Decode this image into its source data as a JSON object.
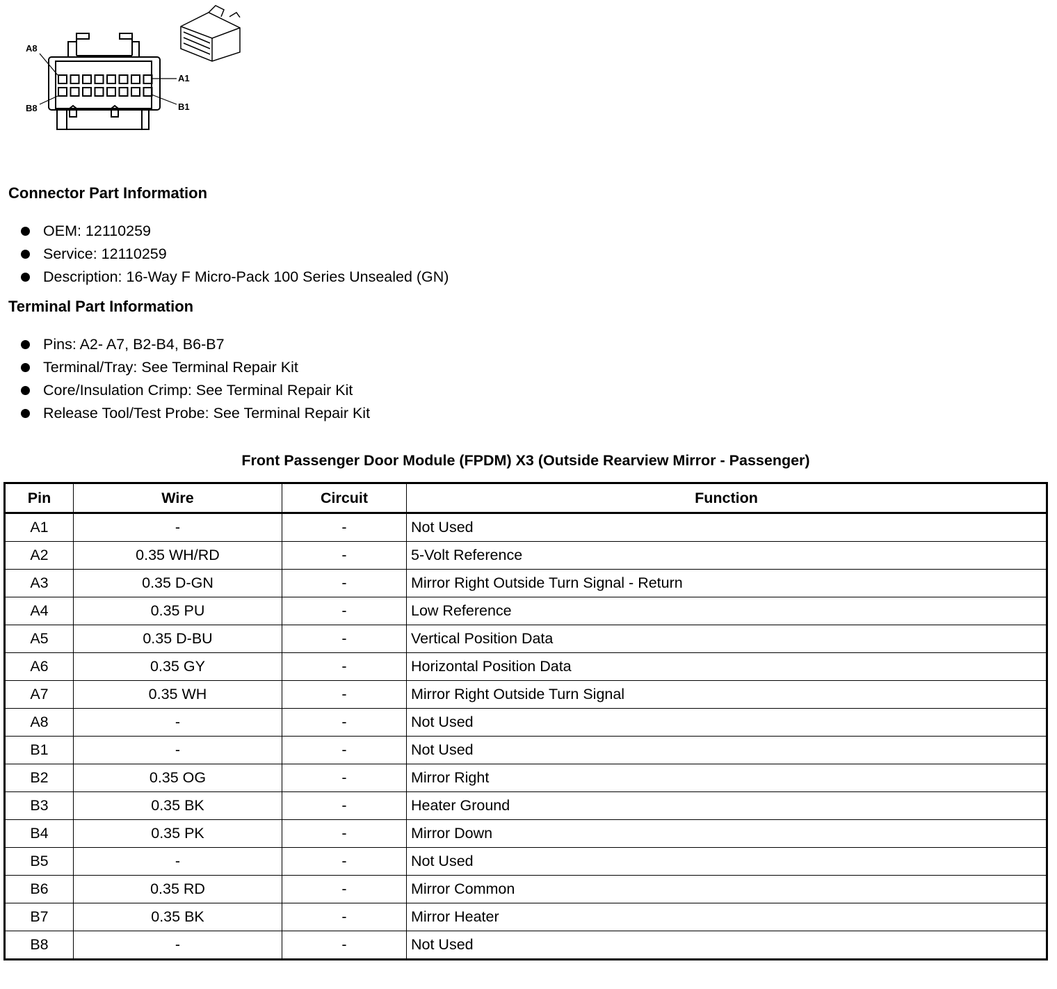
{
  "diagram": {
    "labels": {
      "a8": "A8",
      "a1": "A1",
      "b8": "B8",
      "b1": "B1"
    }
  },
  "connector_info": {
    "heading": "Connector Part Information",
    "items": [
      "OEM: 12110259",
      "Service: 12110259",
      "Description: 16-Way F Micro-Pack 100 Series Unsealed (GN)"
    ]
  },
  "terminal_info": {
    "heading": "Terminal Part Information",
    "items": [
      "Pins: A2- A7, B2-B4, B6-B7",
      "Terminal/Tray: See Terminal Repair Kit",
      "Core/Insulation Crimp: See Terminal Repair Kit",
      "Release Tool/Test Probe: See Terminal Repair Kit"
    ]
  },
  "table": {
    "title": "Front Passenger Door Module (FPDM) X3 (Outside Rearview Mirror - Passenger)",
    "headers": [
      "Pin",
      "Wire",
      "Circuit",
      "Function"
    ],
    "rows": [
      [
        "A1",
        "-",
        "-",
        "Not Used"
      ],
      [
        "A2",
        "0.35 WH/RD",
        "-",
        "5-Volt Reference"
      ],
      [
        "A3",
        "0.35 D-GN",
        "-",
        "Mirror Right Outside Turn Signal - Return"
      ],
      [
        "A4",
        "0.35 PU",
        "-",
        "Low Reference"
      ],
      [
        "A5",
        "0.35 D-BU",
        "-",
        "Vertical Position Data"
      ],
      [
        "A6",
        "0.35 GY",
        "-",
        "Horizontal Position Data"
      ],
      [
        "A7",
        "0.35 WH",
        "-",
        "Mirror Right Outside Turn Signal"
      ],
      [
        "A8",
        "-",
        "-",
        "Not Used"
      ],
      [
        "B1",
        "-",
        "-",
        "Not Used"
      ],
      [
        "B2",
        "0.35 OG",
        "-",
        "Mirror Right"
      ],
      [
        "B3",
        "0.35 BK",
        "-",
        "Heater Ground"
      ],
      [
        "B4",
        "0.35 PK",
        "-",
        "Mirror Down"
      ],
      [
        "B5",
        "-",
        "-",
        "Not Used"
      ],
      [
        "B6",
        "0.35 RD",
        "-",
        "Mirror Common"
      ],
      [
        "B7",
        "0.35 BK",
        "-",
        "Mirror Heater"
      ],
      [
        "B8",
        "-",
        "-",
        "Not Used"
      ]
    ]
  }
}
